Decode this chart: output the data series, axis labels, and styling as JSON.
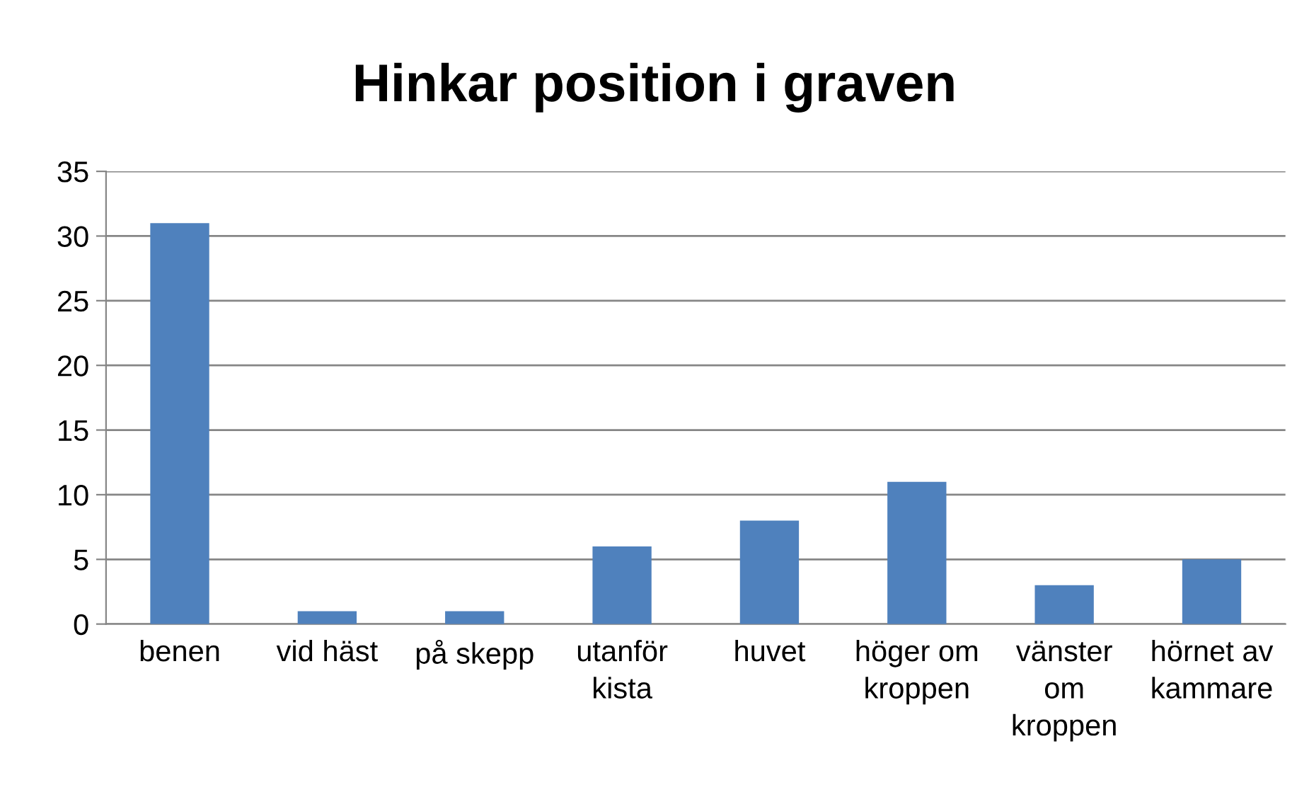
{
  "chart_data": {
    "type": "bar",
    "title": "Hinkar position i graven",
    "categories": [
      "benen",
      "vid häst",
      "på skepp",
      "utanför\nkista",
      "huvet",
      "höger om\nkroppen",
      "vänster\nom\nkroppen",
      "hörnet av\nkammare"
    ],
    "values": [
      31,
      1,
      1,
      6,
      8,
      11,
      3,
      5
    ],
    "color": "#4f81bd",
    "ylim": [
      0,
      35
    ],
    "yticks": [
      0,
      5,
      10,
      15,
      20,
      25,
      30,
      35
    ],
    "grid": "y",
    "legend": false
  }
}
